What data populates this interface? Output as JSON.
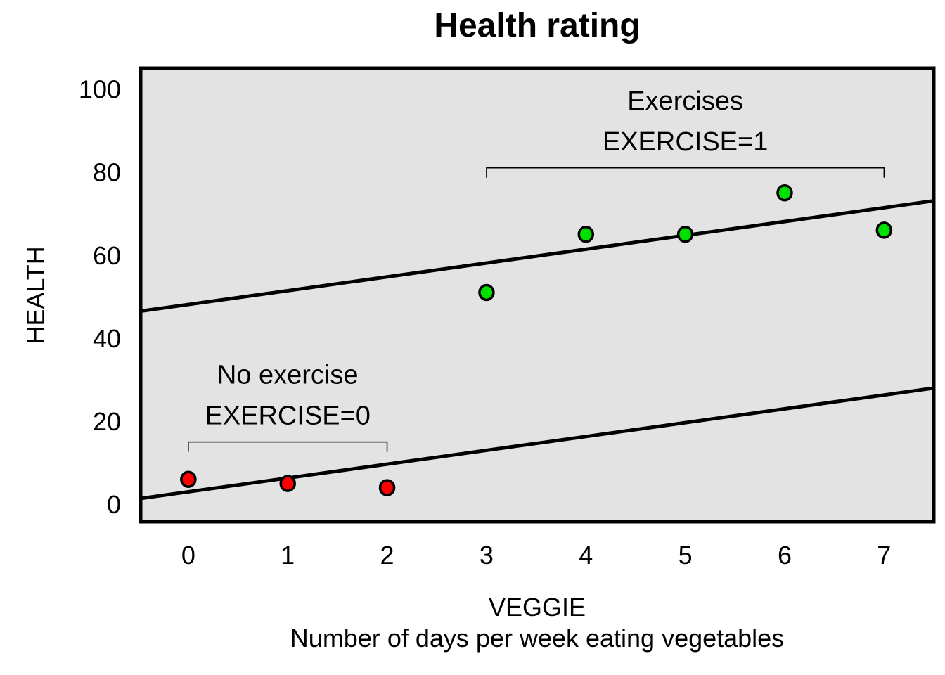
{
  "chart_data": {
    "type": "scatter",
    "title": "Health rating",
    "xlabel": "VEGGIE",
    "xlabel_sub": "Number of days per week eating vegetables",
    "ylabel": "HEALTH",
    "xlim": [
      -0.48,
      7.5
    ],
    "ylim": [
      -4.2,
      105
    ],
    "x_ticks": [
      0,
      1,
      2,
      3,
      4,
      5,
      6,
      7
    ],
    "y_ticks": [
      0,
      20,
      40,
      60,
      80,
      100
    ],
    "grid": false,
    "background_color": "#e3e3e3",
    "series": [
      {
        "name": "No exercise (EXERCISE=0)",
        "color": "#ff0000",
        "points": [
          [
            0,
            6
          ],
          [
            1,
            5
          ],
          [
            2,
            4
          ]
        ]
      },
      {
        "name": "Exercises (EXERCISE=1)",
        "color": "#00e000",
        "points": [
          [
            3,
            51
          ],
          [
            4,
            65
          ],
          [
            5,
            65
          ],
          [
            6,
            75
          ],
          [
            7,
            66
          ]
        ]
      }
    ],
    "lines": [
      {
        "name": "EXERCISE=0 fit",
        "intercept": 3.0,
        "slope": 3.33
      },
      {
        "name": "EXERCISE=1 fit",
        "intercept": 48.1,
        "slope": 3.33
      }
    ],
    "annotations": [
      {
        "name": "no-exercise",
        "lines": [
          "No exercise",
          "EXERCISE=0"
        ],
        "x_from": 0,
        "x_to": 2,
        "bracket_y": 15
      },
      {
        "name": "exercises",
        "lines": [
          "Exercises",
          "EXERCISE=1"
        ],
        "x_from": 3,
        "x_to": 7,
        "bracket_y": 81
      }
    ]
  }
}
